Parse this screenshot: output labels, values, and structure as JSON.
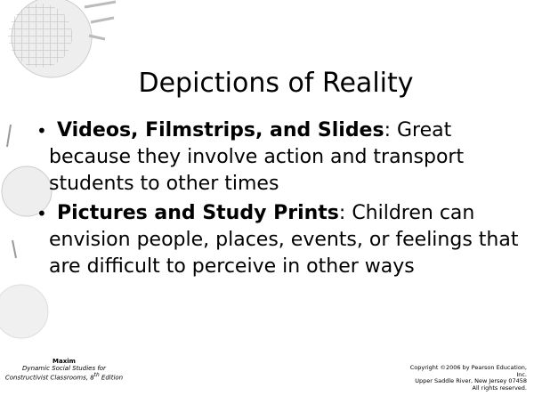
{
  "title": "Depictions of Reality",
  "bullets": [
    {
      "lead": "Videos, Filmstrips, and Slides",
      "colon": ":",
      "text": "Great because they involve action and transport students to other times"
    },
    {
      "lead": "Pictures and Study Prints",
      "colon": ":",
      "text": "Children can envision people, places, events, or feelings that are difficult to perceive in other ways"
    }
  ],
  "footer": {
    "left": {
      "author": "Maxim",
      "book": "Dynamic Social Studies for Constructivist Classrooms, 8",
      "superscript": "th",
      "edition": "Edition"
    },
    "right": [
      "Copyright ©2006 by Pearson Education,",
      "Inc.",
      "Upper Saddle River, New Jersey 07458",
      "All rights reserved."
    ]
  }
}
